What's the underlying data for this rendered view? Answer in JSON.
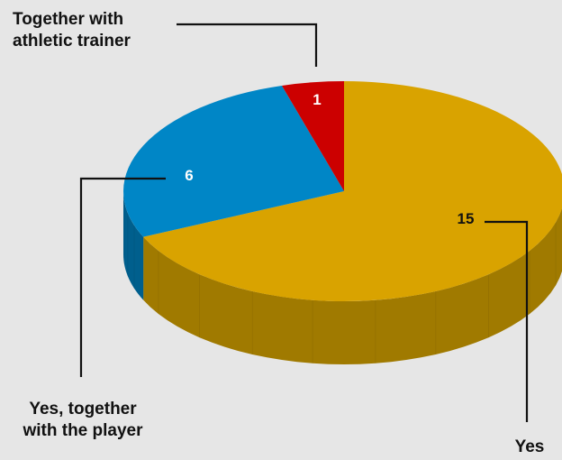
{
  "chart_data": {
    "type": "pie",
    "style": "3d",
    "slices": [
      {
        "label": "Yes",
        "value": 15,
        "color": "#d9a300",
        "side_color": "#a07a00"
      },
      {
        "label": "Yes, together with the player",
        "value": 6,
        "color": "#0086c6",
        "side_color": "#005f8d"
      },
      {
        "label": "Together with athletic trainer",
        "value": 1,
        "color": "#cc0000",
        "side_color": "#8f0000"
      }
    ]
  },
  "labels": {
    "together_line1": "Together with",
    "together_line2": "athletic trainer",
    "player_line1": "Yes, together",
    "player_line2": "with the player",
    "yes": "Yes"
  }
}
